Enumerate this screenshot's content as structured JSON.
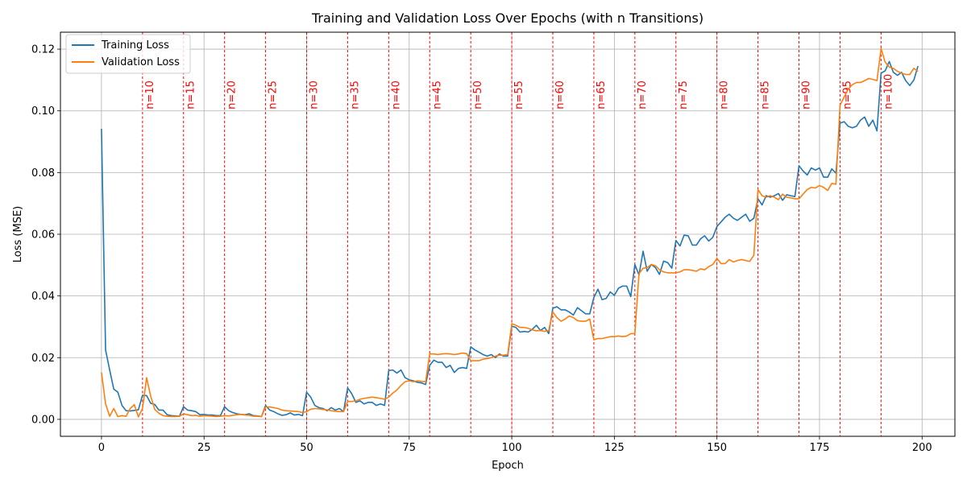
{
  "chart_data": {
    "type": "line",
    "title": "Training and Validation Loss Over Epochs (with n Transitions)",
    "xlabel": "Epoch",
    "ylabel": "Loss (MSE)",
    "xlim": [
      -10,
      208
    ],
    "ylim": [
      -0.0055,
      0.1255
    ],
    "xticks": [
      0,
      25,
      50,
      75,
      100,
      125,
      150,
      175,
      200
    ],
    "yticks": [
      0.0,
      0.02,
      0.04,
      0.06,
      0.08,
      0.1,
      0.12
    ],
    "ytick_labels": [
      "0.00",
      "0.02",
      "0.04",
      "0.06",
      "0.08",
      "0.10",
      "0.12"
    ],
    "grid": true,
    "legend_position": "top-left",
    "transitions": {
      "color": "#ff0000",
      "x": [
        10,
        20,
        30,
        40,
        50,
        60,
        70,
        80,
        90,
        100,
        110,
        120,
        130,
        140,
        150,
        160,
        170,
        180,
        190
      ],
      "labels": [
        "n=10",
        "n=15",
        "n=20",
        "n=25",
        "n=30",
        "n=35",
        "n=40",
        "n=45",
        "n=50",
        "n=55",
        "n=60",
        "n=65",
        "n=70",
        "n=75",
        "n=80",
        "n=85",
        "n=90",
        "n=95",
        "n=100"
      ]
    },
    "series": [
      {
        "name": "Training Loss",
        "color": "#1f77b4",
        "values": [
          0.0942,
          0.0225,
          0.016,
          0.0098,
          0.0088,
          0.0045,
          0.0028,
          0.0027,
          0.0029,
          0.0031,
          0.0078,
          0.0077,
          0.0052,
          0.0048,
          0.003,
          0.003,
          0.0015,
          0.0012,
          0.0011,
          0.001,
          0.0041,
          0.003,
          0.0028,
          0.0025,
          0.0015,
          0.0016,
          0.0014,
          0.0014,
          0.0012,
          0.0012,
          0.0041,
          0.0028,
          0.0022,
          0.0018,
          0.0016,
          0.0015,
          0.0018,
          0.0012,
          0.0011,
          0.0009,
          0.0045,
          0.003,
          0.0025,
          0.0018,
          0.0013,
          0.0015,
          0.0021,
          0.0014,
          0.0016,
          0.0012,
          0.0088,
          0.0072,
          0.0045,
          0.0038,
          0.0035,
          0.0028,
          0.0038,
          0.003,
          0.0035,
          0.0025,
          0.0102,
          0.0083,
          0.0055,
          0.006,
          0.005,
          0.0055,
          0.0055,
          0.0045,
          0.005,
          0.0045,
          0.0158,
          0.016,
          0.015,
          0.016,
          0.0135,
          0.0128,
          0.0125,
          0.012,
          0.0118,
          0.0113,
          0.0175,
          0.0192,
          0.0185,
          0.0185,
          0.0168,
          0.0175,
          0.0152,
          0.0165,
          0.0168,
          0.0165,
          0.0235,
          0.0225,
          0.0218,
          0.021,
          0.0205,
          0.021,
          0.02,
          0.0212,
          0.0205,
          0.0205,
          0.0302,
          0.0298,
          0.0283,
          0.0285,
          0.0283,
          0.0292,
          0.0305,
          0.0288,
          0.0298,
          0.0278,
          0.036,
          0.0365,
          0.0355,
          0.0355,
          0.0348,
          0.0338,
          0.0362,
          0.0352,
          0.0342,
          0.0342,
          0.0395,
          0.0422,
          0.0388,
          0.0392,
          0.0413,
          0.0402,
          0.0425,
          0.0432,
          0.0432,
          0.0398,
          0.0502,
          0.0468,
          0.0545,
          0.048,
          0.0502,
          0.0492,
          0.047,
          0.0513,
          0.0508,
          0.049,
          0.058,
          0.0562,
          0.0597,
          0.0595,
          0.0565,
          0.0565,
          0.0585,
          0.0595,
          0.0578,
          0.059,
          0.0625,
          0.064,
          0.0655,
          0.0665,
          0.0652,
          0.0645,
          0.0655,
          0.0665,
          0.0642,
          0.0652,
          0.0715,
          0.0695,
          0.0725,
          0.072,
          0.0725,
          0.0732,
          0.071,
          0.0728,
          0.0725,
          0.0722,
          0.0822,
          0.0805,
          0.0792,
          0.0815,
          0.0808,
          0.0815,
          0.0785,
          0.0785,
          0.0812,
          0.0798,
          0.096,
          0.0965,
          0.095,
          0.0945,
          0.095,
          0.097,
          0.098,
          0.095,
          0.097,
          0.0935,
          0.1122,
          0.113,
          0.116,
          0.1125,
          0.1115,
          0.1125,
          0.1098,
          0.1082,
          0.11,
          0.1145
        ]
      },
      {
        "name": "Validation Loss",
        "color": "#ff7f0e",
        "values": [
          0.0152,
          0.005,
          0.001,
          0.0035,
          0.0009,
          0.0012,
          0.001,
          0.0035,
          0.0048,
          0.0008,
          0.0035,
          0.0135,
          0.0075,
          0.0032,
          0.002,
          0.0012,
          0.001,
          0.0009,
          0.0009,
          0.001,
          0.0018,
          0.0015,
          0.0012,
          0.0013,
          0.001,
          0.0012,
          0.0011,
          0.001,
          0.0009,
          0.001,
          0.0012,
          0.0011,
          0.0013,
          0.0015,
          0.0016,
          0.0014,
          0.0013,
          0.001,
          0.001,
          0.0009,
          0.004,
          0.004,
          0.0038,
          0.0035,
          0.003,
          0.0028,
          0.0027,
          0.0026,
          0.0025,
          0.0022,
          0.0025,
          0.0033,
          0.0035,
          0.0034,
          0.0032,
          0.0031,
          0.0028,
          0.0026,
          0.0025,
          0.0025,
          0.0058,
          0.0058,
          0.006,
          0.0065,
          0.0068,
          0.007,
          0.0072,
          0.007,
          0.0068,
          0.0065,
          0.0072,
          0.0085,
          0.0095,
          0.011,
          0.0122,
          0.0125,
          0.0122,
          0.0125,
          0.0123,
          0.0122,
          0.0212,
          0.0212,
          0.021,
          0.0212,
          0.0213,
          0.0212,
          0.021,
          0.0212,
          0.0215,
          0.0213,
          0.019,
          0.019,
          0.019,
          0.0195,
          0.0197,
          0.02,
          0.0205,
          0.0208,
          0.0208,
          0.021,
          0.031,
          0.0305,
          0.0298,
          0.0298,
          0.0295,
          0.029,
          0.0287,
          0.0288,
          0.0285,
          0.0288,
          0.0348,
          0.033,
          0.0318,
          0.0325,
          0.0335,
          0.033,
          0.032,
          0.0318,
          0.0318,
          0.0325,
          0.0258,
          0.0262,
          0.0262,
          0.0265,
          0.0268,
          0.0268,
          0.027,
          0.0268,
          0.027,
          0.0278,
          0.0278,
          0.0472,
          0.049,
          0.0492,
          0.0502,
          0.0498,
          0.0485,
          0.0478,
          0.0475,
          0.0475,
          0.0475,
          0.0478,
          0.0485,
          0.0485,
          0.0483,
          0.048,
          0.0488,
          0.0485,
          0.0495,
          0.0502,
          0.0522,
          0.0505,
          0.0505,
          0.0518,
          0.051,
          0.0515,
          0.0518,
          0.0515,
          0.0512,
          0.0532,
          0.0745,
          0.0725,
          0.072,
          0.0725,
          0.072,
          0.0712,
          0.073,
          0.072,
          0.0718,
          0.0715,
          0.0715,
          0.073,
          0.0745,
          0.0752,
          0.075,
          0.0758,
          0.0752,
          0.0742,
          0.0765,
          0.0762,
          0.1018,
          0.1045,
          0.107,
          0.1085,
          0.1092,
          0.1092,
          0.1098,
          0.1105,
          0.1102,
          0.1098,
          0.1202,
          0.1158,
          0.1142,
          0.1138,
          0.1128,
          0.1122,
          0.1118,
          0.1118,
          0.1138,
          0.1128
        ]
      }
    ]
  }
}
